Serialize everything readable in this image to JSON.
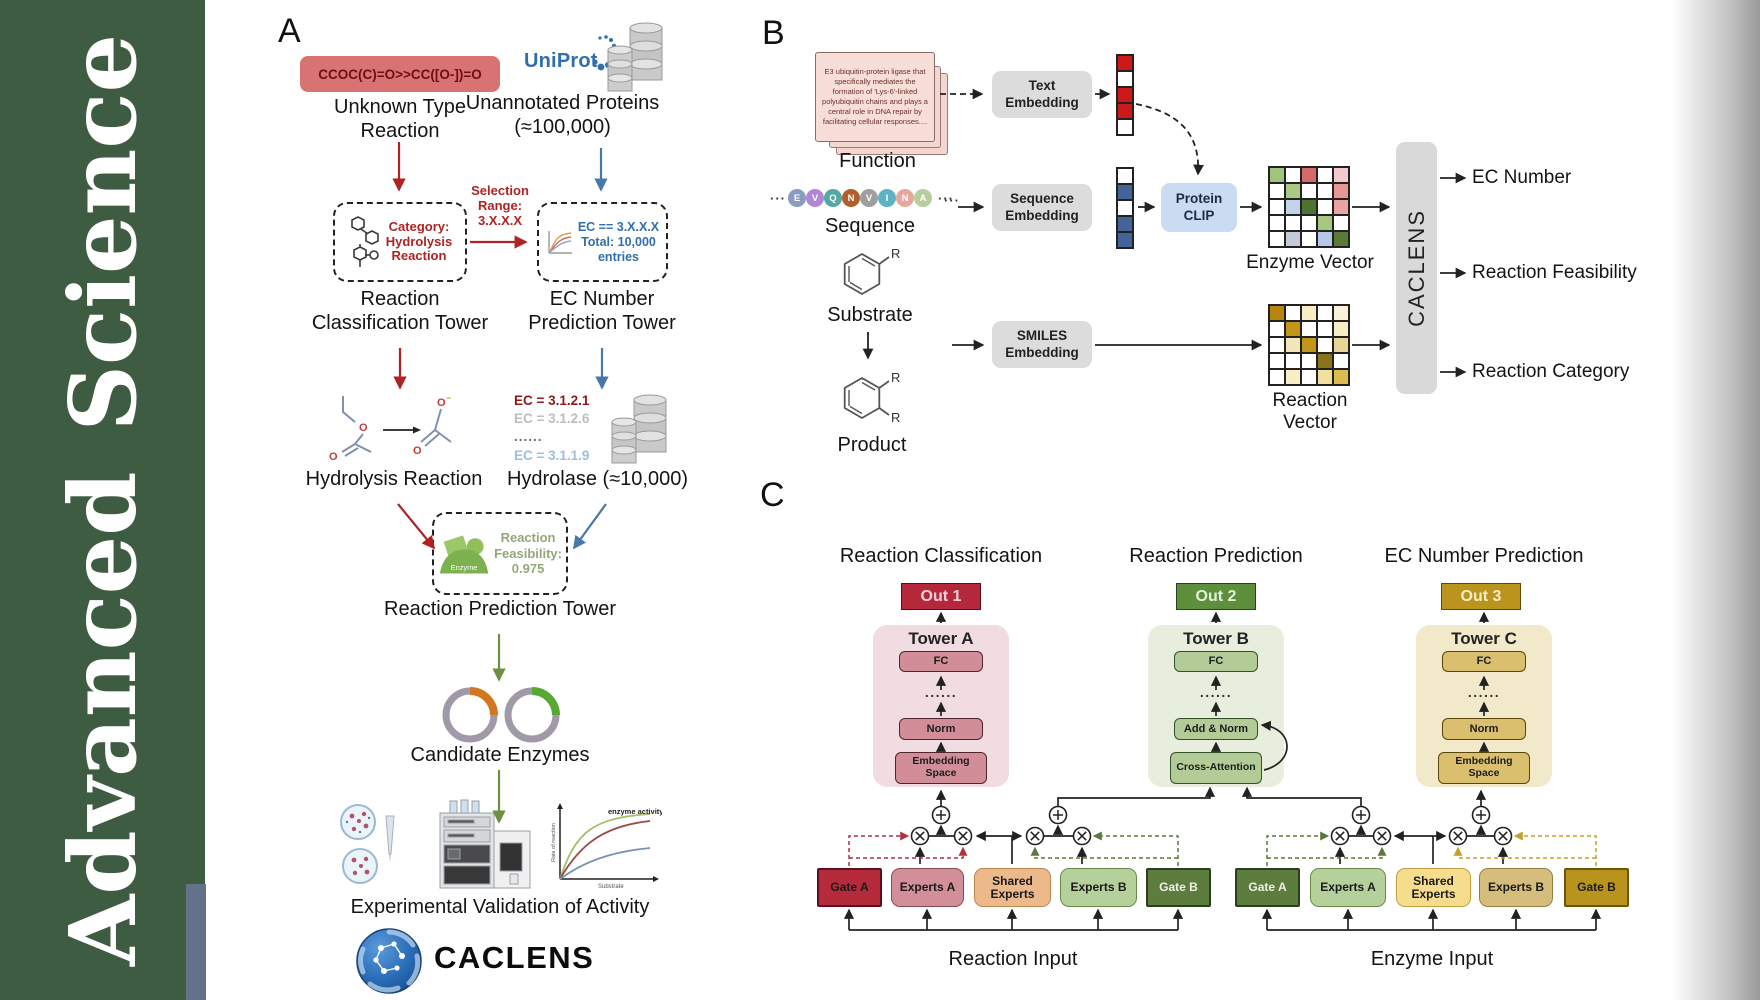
{
  "colors": {
    "sidebar_green": "#3e5c41",
    "accent_red": "#b02323",
    "accent_blue": "#2f6fad",
    "accent_green": "#6a9040",
    "smiles_box": "#d97272",
    "out1": "#b5283c",
    "out2": "#5d8f3d",
    "out3": "#bb941d",
    "caclens_logo_blue": "#2a6db8"
  },
  "journal": {
    "word1": "Advanced",
    "word2": "Science"
  },
  "panelA": {
    "label": "A",
    "smiles": "CCOC(C)=O>>CC([O-])=O",
    "unknown_type": "Unknown Type Reaction",
    "uniprot": "UniProt",
    "unannotated": "Unannotated Proteins (≈100,000)",
    "category_lines": [
      "Category:",
      "Hydrolysis",
      "Reaction"
    ],
    "selection_lines": [
      "Selection",
      "Range:",
      "3.X.X.X"
    ],
    "ec_box_lines": [
      "EC == 3.X.X.X",
      "Total: 10,000",
      "entries"
    ],
    "tower_classification": "Reaction Classification Tower",
    "tower_ec": "EC Number Prediction Tower",
    "hydrolysis_label": "Hydrolysis Reaction",
    "ec_list": [
      "EC = 3.1.2.1",
      "EC = 3.1.2.6",
      "......",
      "EC = 3.1.1.9"
    ],
    "hydrolase_label": "Hydrolase (≈10,000)",
    "enzyme_word": "Enzyme",
    "feasibility_lines": [
      "Reaction",
      "Feasibility:",
      "0.975"
    ],
    "tower_prediction": "Reaction Prediction Tower",
    "candidate_label": "Candidate Enzymes",
    "activity_graph": {
      "title": "enzyme activity",
      "ylabel": "Rate of reaction",
      "xlabel": "Substrate"
    },
    "validation_label": "Experimental Validation of Activity",
    "brand": "CACLENS"
  },
  "panelB": {
    "label": "B",
    "function_text": "E3 ubiquitin-protein ligase that specifically mediates the formation of 'Lys-6'-linked polyubiquitin chains and plays a central role in DNA repair by facilitating cellular responses....",
    "function_label": "Function",
    "ellipsis": "···",
    "residues": [
      {
        "ch": "E",
        "color": "#8a9cc0"
      },
      {
        "ch": "V",
        "color": "#b286d8"
      },
      {
        "ch": "Q",
        "color": "#52a8a2"
      },
      {
        "ch": "N",
        "color": "#b05f2e"
      },
      {
        "ch": "V",
        "color": "#9e9e9e"
      },
      {
        "ch": "I",
        "color": "#5ab4c4"
      },
      {
        "ch": "N",
        "color": "#e7a89c"
      },
      {
        "ch": "A",
        "color": "#b7ce9e"
      }
    ],
    "sequence_label": "Sequence",
    "substituent": "R",
    "substrate_label": "Substrate",
    "product_label": "Product",
    "text_embedding": "Text Embedding",
    "sequence_embedding": "Sequence Embedding",
    "smiles_embedding": "SMILES Embedding",
    "protein_clip": "Protein CLIP",
    "enzyme_vector_label": "Enzyme Vector",
    "reaction_vector_label": "Reaction Vector",
    "caclens": "CACLENS",
    "outputs": [
      "EC Number",
      "Reaction Feasibility",
      "Reaction Category"
    ],
    "text_vector": [
      "#cc1a1a",
      "#ffffff",
      "#cc1a1a",
      "#cc1a1a",
      "#ffffff"
    ],
    "seq_vector": [
      "#ffffff",
      "#44639a",
      "#ffffff",
      "#44639a",
      "#44639a"
    ],
    "enzyme_matrix": [
      [
        "#9ec47e",
        "#ffffff",
        "#d66a6a",
        "#ffffff",
        "#f3c9ce"
      ],
      [
        "#ffffff",
        "#a8ca85",
        "#ffffff",
        "#ffffff",
        "#e89894"
      ],
      [
        "#ffffff",
        "#c3d4ea",
        "#4e7434",
        "#ffffff",
        "#eba4a4"
      ],
      [
        "#ffffff",
        "#ffffff",
        "#ffffff",
        "#a5c77f",
        "#ffffff"
      ],
      [
        "#ffffff",
        "#c3cbd6",
        "#ffffff",
        "#b4c9e6",
        "#5a7a36"
      ]
    ],
    "reaction_matrix": [
      [
        "#b8860f",
        "#ffffff",
        "#f6eec6",
        "#ffffff",
        "#faf2d6"
      ],
      [
        "#ffffff",
        "#c1941a",
        "#ffffff",
        "#ffffff",
        "#f6eec6"
      ],
      [
        "#ffffff",
        "#f2e6ba",
        "#c1941a",
        "#ffffff",
        "#ead694"
      ],
      [
        "#ffffff",
        "#ffffff",
        "#ffffff",
        "#8a7419",
        "#ffffff"
      ],
      [
        "#ffffff",
        "#f6eec6",
        "#ffffff",
        "#f0df9e",
        "#dcbc4e"
      ]
    ]
  },
  "panelC": {
    "label": "C",
    "towers": [
      {
        "title": "Reaction Classification",
        "out": "Out 1",
        "name": "Tower A",
        "fc": "FC",
        "dots": "......",
        "mid": "Norm",
        "bottom": "Embedding Space"
      },
      {
        "title": "Reaction Prediction",
        "out": "Out 2",
        "name": "Tower B",
        "fc": "FC",
        "dots": "......",
        "mid": "Add & Norm",
        "bottom": "Cross-Attention"
      },
      {
        "title": "EC Number Prediction",
        "out": "Out 3",
        "name": "Tower C",
        "fc": "FC",
        "dots": "......",
        "mid": "Norm",
        "bottom": "Embedding Space"
      }
    ],
    "moe": {
      "left": {
        "gate_a": "Gate A",
        "experts_a": "Experts A",
        "shared": "Shared Experts",
        "experts_b": "Experts B",
        "gate_b": "Gate B",
        "input": "Reaction Input"
      },
      "right": {
        "gate_a": "Gate A",
        "experts_a": "Experts A",
        "shared": "Shared Experts",
        "experts_b": "Experts B",
        "gate_b": "Gate B",
        "input": "Enzyme Input"
      }
    }
  }
}
